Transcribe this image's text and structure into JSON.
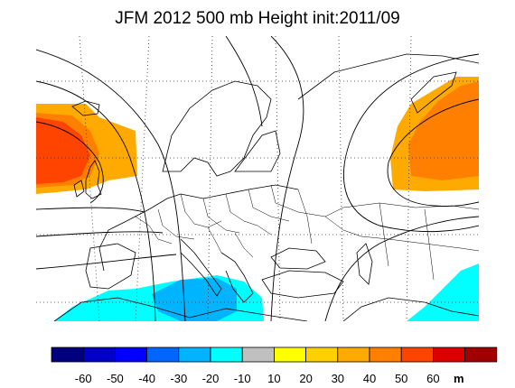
{
  "title": "JFM 2012 500 mb Height init:2011/09",
  "colorbar": {
    "colors": [
      "#00007f",
      "#0000c8",
      "#0000ff",
      "#0066ff",
      "#00b4ff",
      "#00ffff",
      "#c0c0c0",
      "#ffff00",
      "#ffd000",
      "#ffaa00",
      "#ff8000",
      "#ff4400",
      "#dd0000",
      "#a00000"
    ],
    "tick_labels": [
      "-60",
      "-50",
      "-40",
      "-30",
      "-20",
      "-10",
      "10",
      "20",
      "30",
      "40",
      "50",
      "60"
    ],
    "unit": "m"
  },
  "anomaly_colors": {
    "pos_30": "#ffaa00",
    "pos_40": "#ff8000",
    "pos_50": "#ff4400",
    "neg_10": "#00ffff",
    "neg_20": "#00b4ff"
  }
}
